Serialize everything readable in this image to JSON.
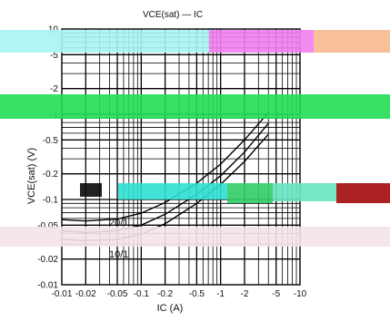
{
  "chart_data": {
    "type": "line",
    "title": "VCE(sat) — IC",
    "xlabel": "IC (A)",
    "ylabel": "VCE(sat) (V)",
    "x_scale": "log",
    "y_scale": "log",
    "xlim": [
      0.01,
      10
    ],
    "ylim": [
      0.01,
      10
    ],
    "x_tick_labels": [
      "-0.01",
      "-0.02",
      "-0.05",
      "-0.1",
      "-0.2",
      "-0.5",
      "-1",
      "-2",
      "-5",
      "-10"
    ],
    "x_tick_values": [
      0.01,
      0.02,
      0.05,
      0.1,
      0.2,
      0.5,
      1,
      2,
      5,
      10
    ],
    "y_tick_labels": [
      "-0.01",
      "-0.02",
      "-0.05",
      "-0.1",
      "-0.2",
      "-0.5",
      "-1",
      "-2",
      "-5",
      "10"
    ],
    "y_tick_values": [
      0.01,
      0.02,
      0.05,
      0.1,
      0.2,
      0.5,
      1,
      2,
      5,
      10
    ],
    "grid": true,
    "series": [
      {
        "name": "",
        "x": [
          0.01,
          0.02,
          0.05,
          0.1,
          0.2,
          0.5,
          1,
          2,
          4
        ],
        "y": [
          0.034,
          0.033,
          0.034,
          0.039,
          0.052,
          0.09,
          0.15,
          0.28,
          0.58
        ]
      },
      {
        "name": "",
        "x": [
          0.01,
          0.02,
          0.05,
          0.1,
          0.2,
          0.5,
          1,
          2,
          4
        ],
        "y": [
          0.043,
          0.041,
          0.043,
          0.05,
          0.067,
          0.115,
          0.19,
          0.36,
          0.78
        ]
      },
      {
        "name": "",
        "x": [
          0.01,
          0.02,
          0.05,
          0.1,
          0.2,
          0.5,
          1,
          2,
          4
        ],
        "y": [
          0.058,
          0.056,
          0.059,
          0.069,
          0.092,
          0.155,
          0.26,
          0.5,
          1.05
        ]
      }
    ],
    "annotations": [
      "20/1",
      "10/1"
    ]
  }
}
